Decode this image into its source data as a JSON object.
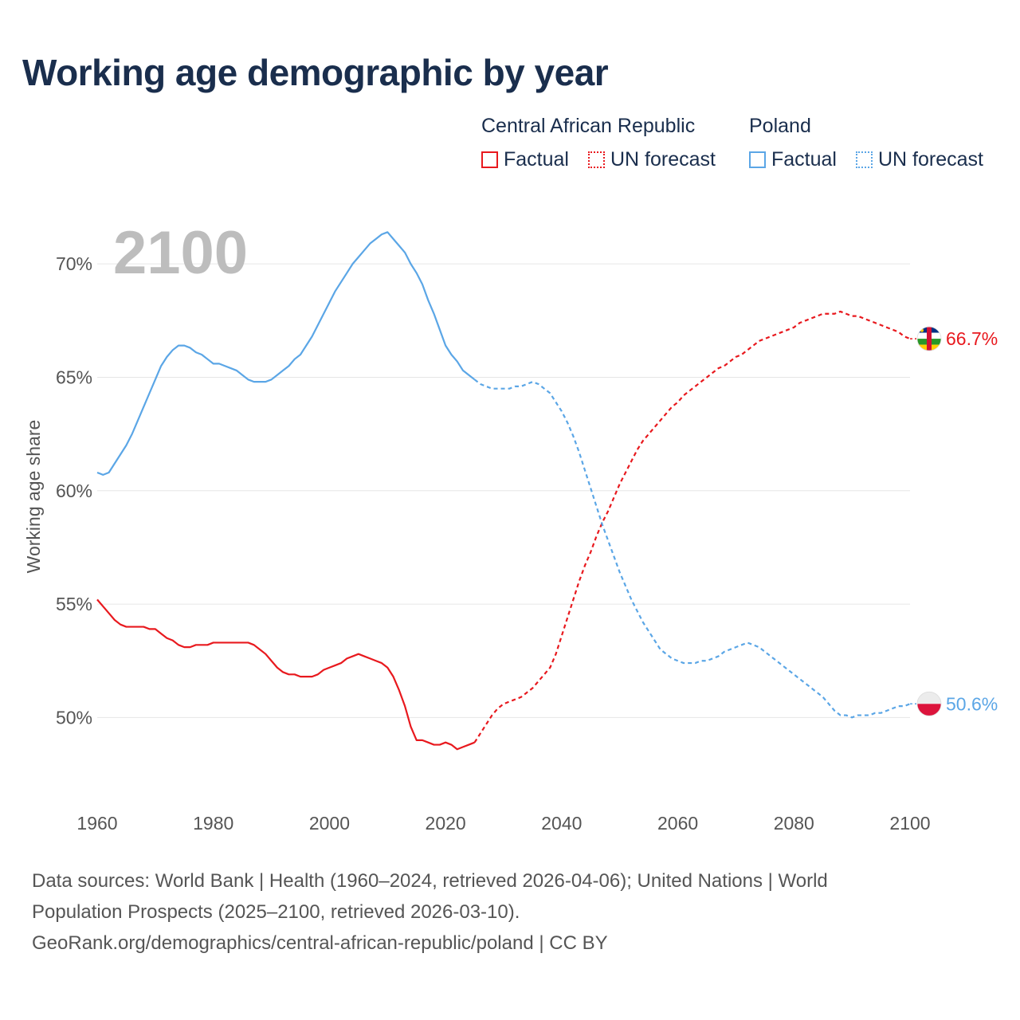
{
  "page": {
    "title": "Working age demographic by year",
    "footer": {
      "line1": "Data sources: World Bank | Health (1960–2024, retrieved 2026-04-06); United Nations | World",
      "line2": "Population Prospects (2025–2100, retrieved 2026-03-10).",
      "line3": "GeoRank.org/demographics/central-african-republic/poland | CC BY"
    }
  },
  "legend": {
    "groups": [
      {
        "name": "Central African Republic",
        "color": "#e8191e",
        "items": [
          {
            "label": "Factual",
            "style": "solid"
          },
          {
            "label": "UN forecast",
            "style": "dotted"
          }
        ]
      },
      {
        "name": "Poland",
        "color": "#5ba6e6",
        "items": [
          {
            "label": "Factual",
            "style": "solid"
          },
          {
            "label": "UN forecast",
            "style": "dotted"
          }
        ]
      }
    ]
  },
  "chart_data": {
    "type": "line",
    "title": "Working age demographic by year",
    "ylabel": "Working age share",
    "xlabel": "",
    "year_watermark": "2100",
    "xlim": [
      1960,
      2100
    ],
    "ylim": [
      46.5,
      72.5
    ],
    "x_ticks": [
      1960,
      1980,
      2000,
      2020,
      2040,
      2060,
      2080,
      2100
    ],
    "x_tick_labels": [
      "1960",
      "1980",
      "2000",
      "2020",
      "2040",
      "2060",
      "2080",
      "2100"
    ],
    "y_ticks": [
      50,
      55,
      60,
      65,
      70
    ],
    "y_tick_labels": [
      "50%",
      "55%",
      "60%",
      "65%",
      "70%"
    ],
    "grid": true,
    "forecast_start": 2025,
    "series": [
      {
        "name": "Central African Republic",
        "color": "#e8191e",
        "end_label": "66.7%",
        "flag": "central-african-republic",
        "points": [
          [
            1960,
            55.2
          ],
          [
            1961,
            54.9
          ],
          [
            1962,
            54.6
          ],
          [
            1963,
            54.3
          ],
          [
            1964,
            54.1
          ],
          [
            1965,
            54.0
          ],
          [
            1966,
            54.0
          ],
          [
            1967,
            54.0
          ],
          [
            1968,
            54.0
          ],
          [
            1969,
            53.9
          ],
          [
            1970,
            53.9
          ],
          [
            1971,
            53.7
          ],
          [
            1972,
            53.5
          ],
          [
            1973,
            53.4
          ],
          [
            1974,
            53.2
          ],
          [
            1975,
            53.1
          ],
          [
            1976,
            53.1
          ],
          [
            1977,
            53.2
          ],
          [
            1978,
            53.2
          ],
          [
            1979,
            53.2
          ],
          [
            1980,
            53.3
          ],
          [
            1981,
            53.3
          ],
          [
            1982,
            53.3
          ],
          [
            1983,
            53.3
          ],
          [
            1984,
            53.3
          ],
          [
            1985,
            53.3
          ],
          [
            1986,
            53.3
          ],
          [
            1987,
            53.2
          ],
          [
            1988,
            53.0
          ],
          [
            1989,
            52.8
          ],
          [
            1990,
            52.5
          ],
          [
            1991,
            52.2
          ],
          [
            1992,
            52.0
          ],
          [
            1993,
            51.9
          ],
          [
            1994,
            51.9
          ],
          [
            1995,
            51.8
          ],
          [
            1996,
            51.8
          ],
          [
            1997,
            51.8
          ],
          [
            1998,
            51.9
          ],
          [
            1999,
            52.1
          ],
          [
            2000,
            52.2
          ],
          [
            2001,
            52.3
          ],
          [
            2002,
            52.4
          ],
          [
            2003,
            52.6
          ],
          [
            2004,
            52.7
          ],
          [
            2005,
            52.8
          ],
          [
            2006,
            52.7
          ],
          [
            2007,
            52.6
          ],
          [
            2008,
            52.5
          ],
          [
            2009,
            52.4
          ],
          [
            2010,
            52.2
          ],
          [
            2011,
            51.8
          ],
          [
            2012,
            51.2
          ],
          [
            2013,
            50.5
          ],
          [
            2014,
            49.6
          ],
          [
            2015,
            49.0
          ],
          [
            2016,
            49.0
          ],
          [
            2017,
            48.9
          ],
          [
            2018,
            48.8
          ],
          [
            2019,
            48.8
          ],
          [
            2020,
            48.9
          ],
          [
            2021,
            48.8
          ],
          [
            2022,
            48.6
          ],
          [
            2023,
            48.7
          ],
          [
            2024,
            48.8
          ],
          [
            2025,
            48.9
          ],
          [
            2026,
            49.3
          ],
          [
            2027,
            49.7
          ],
          [
            2028,
            50.1
          ],
          [
            2029,
            50.4
          ],
          [
            2030,
            50.6
          ],
          [
            2031,
            50.7
          ],
          [
            2032,
            50.8
          ],
          [
            2033,
            50.9
          ],
          [
            2034,
            51.1
          ],
          [
            2035,
            51.3
          ],
          [
            2036,
            51.6
          ],
          [
            2037,
            51.9
          ],
          [
            2038,
            52.2
          ],
          [
            2039,
            52.8
          ],
          [
            2040,
            53.6
          ],
          [
            2041,
            54.4
          ],
          [
            2042,
            55.2
          ],
          [
            2043,
            56.0
          ],
          [
            2044,
            56.7
          ],
          [
            2045,
            57.3
          ],
          [
            2046,
            58.0
          ],
          [
            2047,
            58.6
          ],
          [
            2048,
            59.1
          ],
          [
            2049,
            59.7
          ],
          [
            2050,
            60.3
          ],
          [
            2051,
            60.8
          ],
          [
            2052,
            61.3
          ],
          [
            2053,
            61.8
          ],
          [
            2054,
            62.2
          ],
          [
            2055,
            62.5
          ],
          [
            2056,
            62.8
          ],
          [
            2057,
            63.1
          ],
          [
            2058,
            63.4
          ],
          [
            2059,
            63.7
          ],
          [
            2060,
            63.9
          ],
          [
            2061,
            64.2
          ],
          [
            2062,
            64.4
          ],
          [
            2063,
            64.6
          ],
          [
            2064,
            64.8
          ],
          [
            2065,
            65.0
          ],
          [
            2066,
            65.2
          ],
          [
            2067,
            65.4
          ],
          [
            2068,
            65.5
          ],
          [
            2069,
            65.7
          ],
          [
            2070,
            65.9
          ],
          [
            2071,
            66.0
          ],
          [
            2072,
            66.2
          ],
          [
            2073,
            66.4
          ],
          [
            2074,
            66.6
          ],
          [
            2075,
            66.7
          ],
          [
            2076,
            66.8
          ],
          [
            2077,
            66.9
          ],
          [
            2078,
            67.0
          ],
          [
            2079,
            67.1
          ],
          [
            2080,
            67.2
          ],
          [
            2081,
            67.4
          ],
          [
            2082,
            67.5
          ],
          [
            2083,
            67.6
          ],
          [
            2084,
            67.7
          ],
          [
            2085,
            67.8
          ],
          [
            2086,
            67.8
          ],
          [
            2087,
            67.8
          ],
          [
            2088,
            67.9
          ],
          [
            2089,
            67.8
          ],
          [
            2090,
            67.7
          ],
          [
            2091,
            67.7
          ],
          [
            2092,
            67.6
          ],
          [
            2093,
            67.5
          ],
          [
            2094,
            67.4
          ],
          [
            2095,
            67.3
          ],
          [
            2096,
            67.2
          ],
          [
            2097,
            67.1
          ],
          [
            2098,
            67.0
          ],
          [
            2099,
            66.8
          ],
          [
            2100,
            66.7
          ]
        ]
      },
      {
        "name": "Poland",
        "color": "#5ba6e6",
        "end_label": "50.6%",
        "flag": "poland",
        "points": [
          [
            1960,
            60.8
          ],
          [
            1961,
            60.7
          ],
          [
            1962,
            60.8
          ],
          [
            1963,
            61.2
          ],
          [
            1964,
            61.6
          ],
          [
            1965,
            62.0
          ],
          [
            1966,
            62.5
          ],
          [
            1967,
            63.1
          ],
          [
            1968,
            63.7
          ],
          [
            1969,
            64.3
          ],
          [
            1970,
            64.9
          ],
          [
            1971,
            65.5
          ],
          [
            1972,
            65.9
          ],
          [
            1973,
            66.2
          ],
          [
            1974,
            66.4
          ],
          [
            1975,
            66.4
          ],
          [
            1976,
            66.3
          ],
          [
            1977,
            66.1
          ],
          [
            1978,
            66.0
          ],
          [
            1979,
            65.8
          ],
          [
            1980,
            65.6
          ],
          [
            1981,
            65.6
          ],
          [
            1982,
            65.5
          ],
          [
            1983,
            65.4
          ],
          [
            1984,
            65.3
          ],
          [
            1985,
            65.1
          ],
          [
            1986,
            64.9
          ],
          [
            1987,
            64.8
          ],
          [
            1988,
            64.8
          ],
          [
            1989,
            64.8
          ],
          [
            1990,
            64.9
          ],
          [
            1991,
            65.1
          ],
          [
            1992,
            65.3
          ],
          [
            1993,
            65.5
          ],
          [
            1994,
            65.8
          ],
          [
            1995,
            66.0
          ],
          [
            1996,
            66.4
          ],
          [
            1997,
            66.8
          ],
          [
            1998,
            67.3
          ],
          [
            1999,
            67.8
          ],
          [
            2000,
            68.3
          ],
          [
            2001,
            68.8
          ],
          [
            2002,
            69.2
          ],
          [
            2003,
            69.6
          ],
          [
            2004,
            70.0
          ],
          [
            2005,
            70.3
          ],
          [
            2006,
            70.6
          ],
          [
            2007,
            70.9
          ],
          [
            2008,
            71.1
          ],
          [
            2009,
            71.3
          ],
          [
            2010,
            71.4
          ],
          [
            2011,
            71.1
          ],
          [
            2012,
            70.8
          ],
          [
            2013,
            70.5
          ],
          [
            2014,
            70.0
          ],
          [
            2015,
            69.6
          ],
          [
            2016,
            69.1
          ],
          [
            2017,
            68.4
          ],
          [
            2018,
            67.8
          ],
          [
            2019,
            67.1
          ],
          [
            2020,
            66.4
          ],
          [
            2021,
            66.0
          ],
          [
            2022,
            65.7
          ],
          [
            2023,
            65.3
          ],
          [
            2024,
            65.1
          ],
          [
            2025,
            64.9
          ],
          [
            2026,
            64.7
          ],
          [
            2027,
            64.6
          ],
          [
            2028,
            64.5
          ],
          [
            2029,
            64.5
          ],
          [
            2030,
            64.5
          ],
          [
            2031,
            64.5
          ],
          [
            2032,
            64.6
          ],
          [
            2033,
            64.6
          ],
          [
            2034,
            64.7
          ],
          [
            2035,
            64.8
          ],
          [
            2036,
            64.7
          ],
          [
            2037,
            64.5
          ],
          [
            2038,
            64.3
          ],
          [
            2039,
            63.9
          ],
          [
            2040,
            63.5
          ],
          [
            2041,
            63.0
          ],
          [
            2042,
            62.4
          ],
          [
            2043,
            61.7
          ],
          [
            2044,
            60.9
          ],
          [
            2045,
            60.1
          ],
          [
            2046,
            59.3
          ],
          [
            2047,
            58.5
          ],
          [
            2048,
            57.8
          ],
          [
            2049,
            57.1
          ],
          [
            2050,
            56.4
          ],
          [
            2051,
            55.8
          ],
          [
            2052,
            55.2
          ],
          [
            2053,
            54.7
          ],
          [
            2054,
            54.2
          ],
          [
            2055,
            53.8
          ],
          [
            2056,
            53.4
          ],
          [
            2057,
            53.0
          ],
          [
            2058,
            52.8
          ],
          [
            2059,
            52.6
          ],
          [
            2060,
            52.5
          ],
          [
            2061,
            52.4
          ],
          [
            2062,
            52.4
          ],
          [
            2063,
            52.4
          ],
          [
            2064,
            52.5
          ],
          [
            2065,
            52.5
          ],
          [
            2066,
            52.6
          ],
          [
            2067,
            52.7
          ],
          [
            2068,
            52.9
          ],
          [
            2069,
            53.0
          ],
          [
            2070,
            53.1
          ],
          [
            2071,
            53.2
          ],
          [
            2072,
            53.3
          ],
          [
            2073,
            53.2
          ],
          [
            2074,
            53.1
          ],
          [
            2075,
            52.9
          ],
          [
            2076,
            52.7
          ],
          [
            2077,
            52.5
          ],
          [
            2078,
            52.3
          ],
          [
            2079,
            52.1
          ],
          [
            2080,
            51.9
          ],
          [
            2081,
            51.7
          ],
          [
            2082,
            51.5
          ],
          [
            2083,
            51.3
          ],
          [
            2084,
            51.1
          ],
          [
            2085,
            50.9
          ],
          [
            2086,
            50.6
          ],
          [
            2087,
            50.3
          ],
          [
            2088,
            50.1
          ],
          [
            2089,
            50.1
          ],
          [
            2090,
            50.0
          ],
          [
            2091,
            50.1
          ],
          [
            2092,
            50.1
          ],
          [
            2093,
            50.1
          ],
          [
            2094,
            50.2
          ],
          [
            2095,
            50.2
          ],
          [
            2096,
            50.3
          ],
          [
            2097,
            50.4
          ],
          [
            2098,
            50.5
          ],
          [
            2099,
            50.5
          ],
          [
            2100,
            50.6
          ]
        ]
      }
    ]
  }
}
